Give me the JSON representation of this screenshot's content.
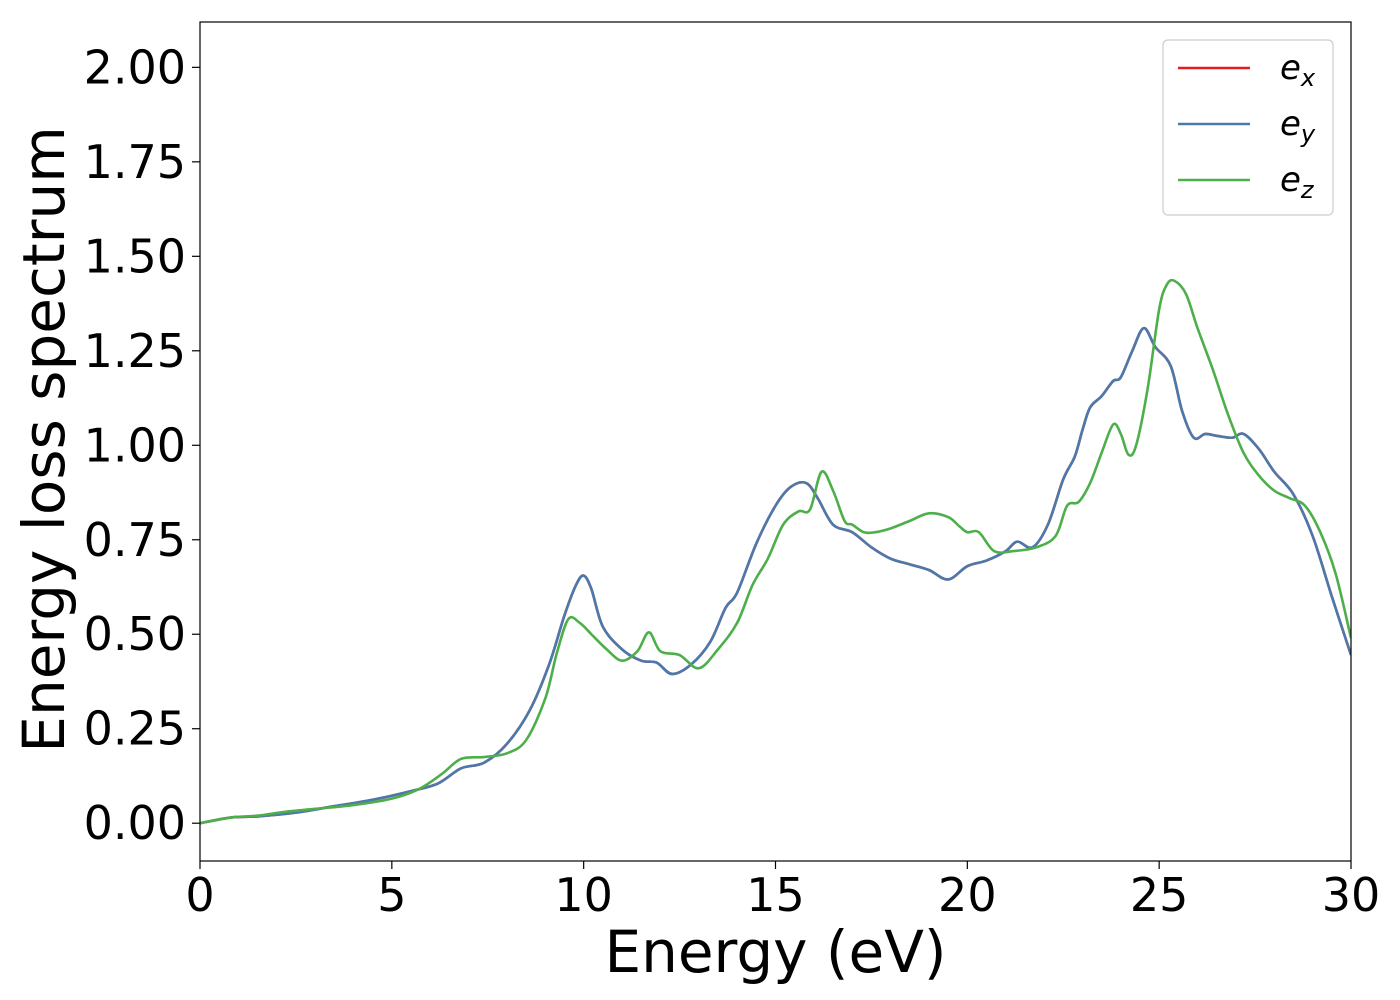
{
  "chart_data": {
    "type": "line",
    "xlabel": "Energy (eV)",
    "ylabel": "Energy loss spectrum",
    "xlim": [
      0,
      30
    ],
    "ylim": [
      -0.1,
      2.12
    ],
    "x_ticks": [
      0,
      5,
      10,
      15,
      20,
      25,
      30
    ],
    "x_tick_labels": [
      "0",
      "5",
      "10",
      "15",
      "20",
      "25",
      "30"
    ],
    "y_ticks": [
      0,
      0.25,
      0.5,
      0.75,
      1.0,
      1.25,
      1.5,
      1.75,
      2.0
    ],
    "y_tick_labels": [
      "0.00",
      "0.25",
      "0.50",
      "0.75",
      "1.00",
      "1.25",
      "1.50",
      "1.75",
      "2.00"
    ],
    "grid": false,
    "legend_position": "top-right",
    "series": [
      {
        "name": "e",
        "subscript": "x",
        "color": "#e41a1c",
        "x": [
          0,
          0.8,
          1.5,
          2.5,
          3.5,
          4.5,
          5.5,
          6.2,
          6.8,
          7.4,
          8.0,
          8.6,
          9.1,
          9.5,
          9.8,
          10.0,
          10.2,
          10.5,
          11.0,
          11.5,
          11.9,
          12.3,
          12.8,
          13.3,
          13.7,
          14.0,
          14.5,
          15.0,
          15.4,
          15.8,
          16.1,
          16.5,
          17.0,
          17.5,
          18.0,
          18.5,
          19.0,
          19.5,
          20.0,
          20.5,
          21.0,
          21.3,
          21.7,
          22.1,
          22.5,
          22.8,
          23.0,
          23.2,
          23.5,
          23.8,
          24.0,
          24.3,
          24.6,
          24.9,
          25.3,
          25.6,
          25.9,
          26.2,
          26.5,
          26.9,
          27.2,
          27.6,
          28.0,
          28.5,
          29.0,
          29.5,
          30.0
        ],
        "y": [
          0.0,
          0.015,
          0.018,
          0.028,
          0.045,
          0.062,
          0.085,
          0.105,
          0.145,
          0.16,
          0.21,
          0.3,
          0.42,
          0.55,
          0.63,
          0.655,
          0.62,
          0.52,
          0.46,
          0.43,
          0.425,
          0.395,
          0.42,
          0.48,
          0.57,
          0.61,
          0.74,
          0.84,
          0.89,
          0.9,
          0.86,
          0.79,
          0.77,
          0.73,
          0.7,
          0.685,
          0.67,
          0.645,
          0.68,
          0.695,
          0.72,
          0.745,
          0.73,
          0.79,
          0.91,
          0.97,
          1.04,
          1.1,
          1.13,
          1.17,
          1.18,
          1.25,
          1.31,
          1.26,
          1.21,
          1.09,
          1.02,
          1.03,
          1.025,
          1.02,
          1.03,
          0.99,
          0.93,
          0.87,
          0.76,
          0.6,
          0.445
        ]
      },
      {
        "name": "e",
        "subscript": "y",
        "color": "#4a7aad",
        "x": [
          0,
          0.8,
          1.5,
          2.5,
          3.5,
          4.5,
          5.5,
          6.2,
          6.8,
          7.4,
          8.0,
          8.6,
          9.1,
          9.5,
          9.8,
          10.0,
          10.2,
          10.5,
          11.0,
          11.5,
          11.9,
          12.3,
          12.8,
          13.3,
          13.7,
          14.0,
          14.5,
          15.0,
          15.4,
          15.8,
          16.1,
          16.5,
          17.0,
          17.5,
          18.0,
          18.5,
          19.0,
          19.5,
          20.0,
          20.5,
          21.0,
          21.3,
          21.7,
          22.1,
          22.5,
          22.8,
          23.0,
          23.2,
          23.5,
          23.8,
          24.0,
          24.3,
          24.6,
          24.9,
          25.3,
          25.6,
          25.9,
          26.2,
          26.5,
          26.9,
          27.2,
          27.6,
          28.0,
          28.5,
          29.0,
          29.5,
          30.0
        ],
        "y": [
          0.0,
          0.015,
          0.018,
          0.028,
          0.045,
          0.062,
          0.085,
          0.105,
          0.145,
          0.16,
          0.21,
          0.3,
          0.42,
          0.55,
          0.63,
          0.655,
          0.62,
          0.52,
          0.46,
          0.43,
          0.425,
          0.395,
          0.42,
          0.48,
          0.57,
          0.61,
          0.74,
          0.84,
          0.89,
          0.9,
          0.86,
          0.79,
          0.77,
          0.73,
          0.7,
          0.685,
          0.67,
          0.645,
          0.68,
          0.695,
          0.72,
          0.745,
          0.73,
          0.79,
          0.91,
          0.97,
          1.04,
          1.1,
          1.13,
          1.17,
          1.18,
          1.25,
          1.31,
          1.26,
          1.21,
          1.09,
          1.02,
          1.03,
          1.025,
          1.02,
          1.03,
          0.99,
          0.93,
          0.87,
          0.76,
          0.6,
          0.445
        ]
      },
      {
        "name": "e",
        "subscript": "z",
        "color": "#4daf4a",
        "x": [
          0,
          0.8,
          1.5,
          2.2,
          3.0,
          4.0,
          5.0,
          5.7,
          6.3,
          6.8,
          7.4,
          8.0,
          8.5,
          9.0,
          9.3,
          9.6,
          9.9,
          10.2,
          10.6,
          11.0,
          11.4,
          11.7,
          12.0,
          12.5,
          13.0,
          13.5,
          14.0,
          14.4,
          14.8,
          15.2,
          15.6,
          15.9,
          16.2,
          16.5,
          16.8,
          17.0,
          17.3,
          17.6,
          18.0,
          18.5,
          19.0,
          19.5,
          19.8,
          20.0,
          20.3,
          20.7,
          21.2,
          21.8,
          22.3,
          22.6,
          22.9,
          23.2,
          23.5,
          23.8,
          24.0,
          24.2,
          24.4,
          24.7,
          25.0,
          25.2,
          25.4,
          25.7,
          26.0,
          26.4,
          26.8,
          27.2,
          27.6,
          28.0,
          28.4,
          28.8,
          29.2,
          29.6,
          30.0
        ],
        "y": [
          0.0,
          0.015,
          0.02,
          0.03,
          0.038,
          0.048,
          0.065,
          0.09,
          0.13,
          0.17,
          0.175,
          0.185,
          0.22,
          0.33,
          0.45,
          0.54,
          0.53,
          0.5,
          0.46,
          0.43,
          0.455,
          0.505,
          0.455,
          0.445,
          0.41,
          0.46,
          0.53,
          0.63,
          0.7,
          0.79,
          0.825,
          0.83,
          0.93,
          0.88,
          0.8,
          0.79,
          0.77,
          0.77,
          0.78,
          0.8,
          0.82,
          0.81,
          0.785,
          0.77,
          0.77,
          0.72,
          0.72,
          0.73,
          0.76,
          0.84,
          0.85,
          0.9,
          0.98,
          1.055,
          1.03,
          0.975,
          1.0,
          1.15,
          1.36,
          1.425,
          1.435,
          1.4,
          1.31,
          1.2,
          1.08,
          0.98,
          0.92,
          0.88,
          0.86,
          0.84,
          0.77,
          0.66,
          0.49
        ]
      }
    ]
  }
}
